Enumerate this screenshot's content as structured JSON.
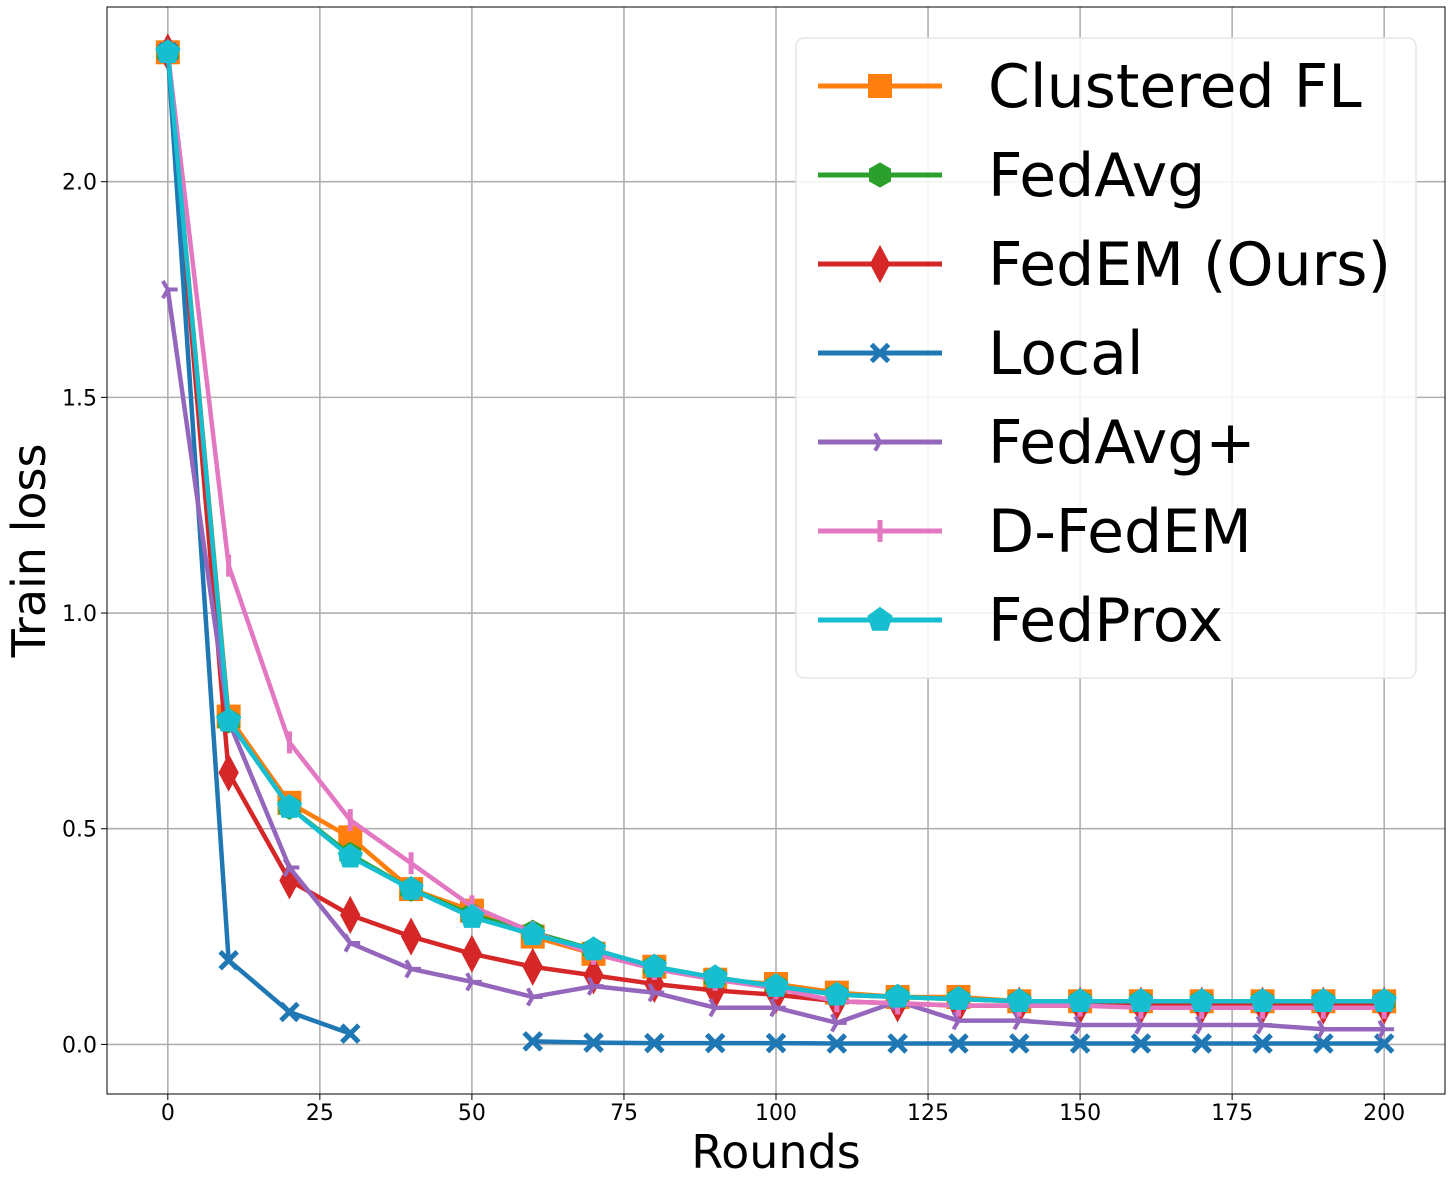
{
  "chart_data": {
    "type": "line",
    "title": "",
    "xlabel": "Rounds",
    "ylabel": "Train loss",
    "xlim": [
      -10,
      210
    ],
    "ylim": [
      -0.115,
      2.405
    ],
    "xticks": [
      0,
      25,
      50,
      75,
      100,
      125,
      150,
      175,
      200
    ],
    "xtick_labels": [
      "0",
      "25",
      "50",
      "75",
      "100",
      "125",
      "150",
      "175",
      "200"
    ],
    "yticks": [
      0.0,
      0.5,
      1.0,
      1.5,
      2.0
    ],
    "ytick_labels": [
      "0.0",
      "0.5",
      "1.0",
      "1.5",
      "2.0"
    ],
    "grid": true,
    "legend_position": "top-right",
    "x": [
      0,
      10,
      20,
      30,
      40,
      50,
      60,
      70,
      80,
      90,
      100,
      110,
      120,
      130,
      140,
      150,
      160,
      170,
      180,
      190,
      200
    ],
    "series": [
      {
        "name": "Clustered FL",
        "color": "#ff7f0e",
        "marker": "square",
        "values": [
          2.3,
          0.76,
          0.56,
          0.48,
          0.36,
          0.31,
          0.25,
          0.21,
          0.18,
          0.15,
          0.14,
          0.12,
          0.11,
          0.11,
          0.1,
          0.1,
          0.1,
          0.1,
          0.1,
          0.1,
          0.1
        ]
      },
      {
        "name": "FedAvg",
        "color": "#2ca02c",
        "marker": "hexagon",
        "values": [
          2.3,
          0.75,
          0.55,
          0.44,
          0.36,
          0.3,
          0.26,
          0.22,
          0.18,
          0.155,
          0.135,
          0.115,
          0.11,
          0.105,
          0.1,
          0.1,
          0.1,
          0.1,
          0.1,
          0.1,
          0.1
        ]
      },
      {
        "name": "FedEM (Ours)",
        "color": "#d62728",
        "marker": "thin-diamond",
        "values": [
          2.3,
          0.63,
          0.38,
          0.3,
          0.25,
          0.21,
          0.18,
          0.16,
          0.14,
          0.125,
          0.115,
          0.1,
          0.095,
          0.09,
          0.09,
          0.09,
          0.09,
          0.09,
          0.09,
          0.09,
          0.09
        ]
      },
      {
        "name": "Local",
        "color": "#1f77b4",
        "marker": "x",
        "values": [
          2.3,
          0.195,
          0.075,
          0.025,
          null,
          null,
          0.007,
          0.004,
          0.003,
          0.003,
          0.003,
          0.002,
          0.002,
          0.002,
          0.002,
          0.002,
          0.002,
          0.002,
          0.002,
          0.002,
          0.002
        ]
      },
      {
        "name": "FedAvg+",
        "color": "#9467bd",
        "marker": "tri-right",
        "values": [
          1.75,
          0.75,
          0.41,
          0.235,
          0.175,
          0.145,
          0.11,
          0.135,
          0.12,
          0.085,
          0.085,
          0.05,
          0.1,
          0.055,
          0.055,
          0.045,
          0.045,
          0.045,
          0.045,
          0.035,
          0.035
        ]
      },
      {
        "name": "D-FedEM",
        "color": "#e377c2",
        "marker": "thin-vline",
        "values": [
          2.3,
          1.11,
          0.7,
          0.52,
          0.42,
          0.32,
          0.26,
          0.21,
          0.175,
          0.15,
          0.13,
          0.1,
          0.095,
          0.09,
          0.09,
          0.09,
          0.085,
          0.085,
          0.085,
          0.085,
          0.085
        ]
      },
      {
        "name": "FedProx",
        "color": "#17becf",
        "marker": "pentagon",
        "values": [
          2.3,
          0.75,
          0.55,
          0.435,
          0.36,
          0.295,
          0.255,
          0.22,
          0.18,
          0.155,
          0.135,
          0.115,
          0.11,
          0.105,
          0.1,
          0.1,
          0.1,
          0.1,
          0.1,
          0.1,
          0.1
        ]
      }
    ]
  }
}
